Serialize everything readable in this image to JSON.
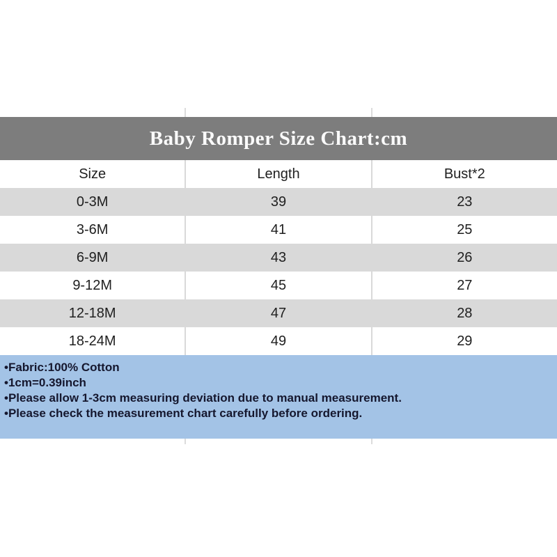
{
  "chart_data": {
    "type": "table",
    "title": "Baby Romper Size Chart:cm",
    "units": "cm",
    "columns": [
      "Size",
      "Length",
      "Bust*2"
    ],
    "rows": [
      [
        "0-3M",
        39,
        23
      ],
      [
        "3-6M",
        41,
        25
      ],
      [
        "6-9M",
        43,
        26
      ],
      [
        "9-12M",
        45,
        27
      ],
      [
        "12-18M",
        47,
        28
      ],
      [
        "18-24M",
        49,
        29
      ]
    ],
    "bullet": "•",
    "notes": [
      "Fabric:100% Cotton",
      "1cm=0.39inch",
      "Please allow 1-3cm measuring deviation due to manual measurement.",
      "Please check the measurement chart carefully before ordering."
    ],
    "colors": {
      "title_bar_bg": "#7d7d7d",
      "title_text": "#fafafa",
      "shaded_row_bg": "#d9d9d9",
      "notes_bg": "#a3c3e6",
      "notes_text": "#15172e",
      "divider": "#d9d9d9"
    }
  }
}
